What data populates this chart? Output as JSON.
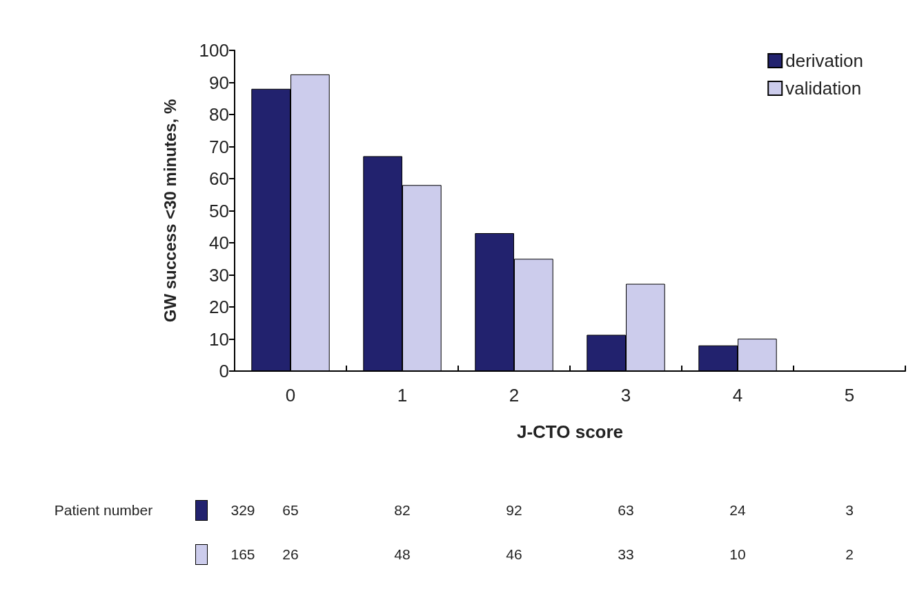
{
  "chart_data": {
    "type": "bar",
    "xlabel": "J-CTO score",
    "ylabel": "GW success <30 minutes, %",
    "categories": [
      "0",
      "1",
      "2",
      "3",
      "4",
      "5"
    ],
    "series": [
      {
        "name": "derivation",
        "color": "#22226e",
        "values": [
          88,
          67,
          43,
          11.3,
          8,
          null
        ]
      },
      {
        "name": "validation",
        "color": "#ccccec",
        "values": [
          92.5,
          58,
          35,
          27.2,
          10.1,
          null
        ]
      }
    ],
    "ylim": [
      0,
      100
    ],
    "yticks": [
      0,
      10,
      20,
      30,
      40,
      50,
      60,
      70,
      80,
      90,
      100
    ],
    "grid": false,
    "legend": "top right",
    "annotations": [
      "Patient number",
      "329",
      "65",
      "82",
      "92",
      "63",
      "24",
      "3",
      "165",
      "26",
      "48",
      "46",
      "33",
      "10",
      "2"
    ]
  }
}
